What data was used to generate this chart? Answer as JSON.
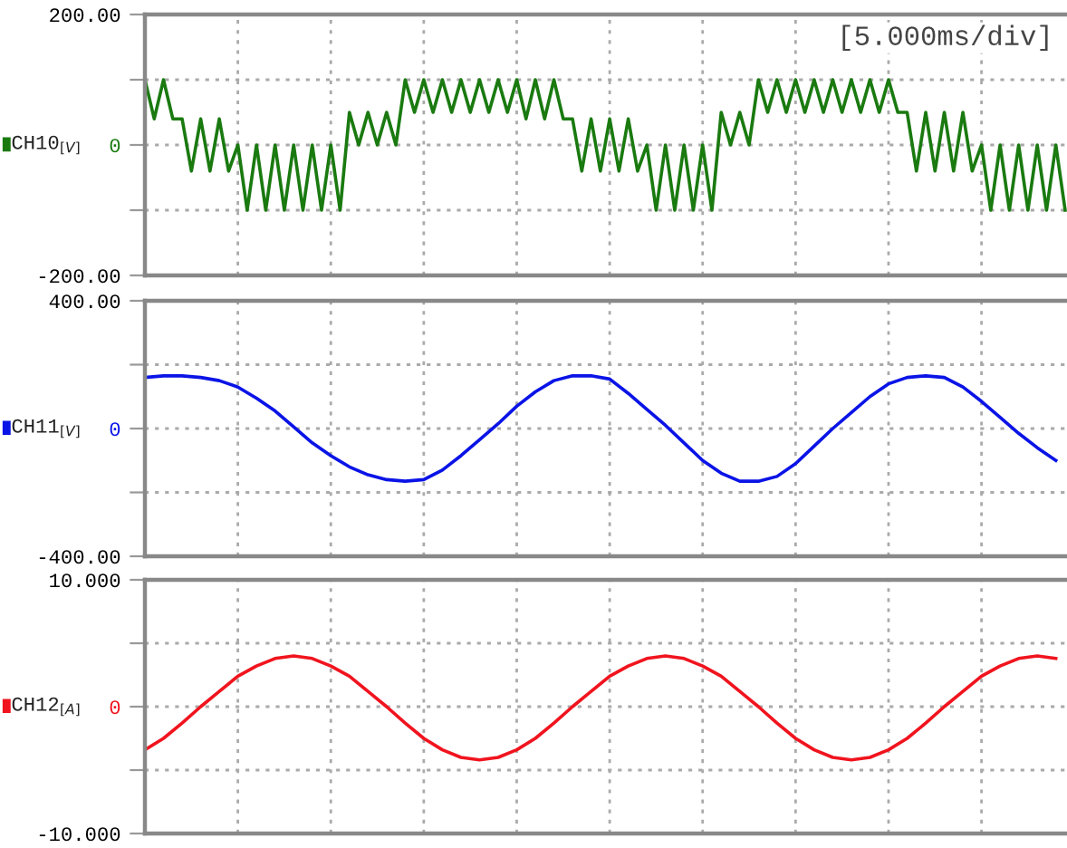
{
  "chart_data": [
    {
      "type": "line",
      "ylabel": "CH10$_{[V]}$",
      "annotations": [
        "[5.000ms/div]"
      ],
      "grid": true,
      "tick_labels": "y",
      "ylim": [
        -200,
        200
      ],
      "yticks": [
        {
          "value": 200,
          "label": "200.00"
        },
        {
          "value": 100,
          "label": null
        },
        {
          "value": 0,
          "label": "0"
        },
        {
          "value": -100,
          "label": null
        },
        {
          "value": -200,
          "label": "-200.00"
        }
      ],
      "categories": [
        null,
        null,
        null,
        null,
        null,
        null,
        null,
        null,
        null,
        null,
        null,
        null,
        null,
        null,
        null,
        null,
        null,
        null,
        null,
        null,
        null,
        null,
        null,
        null,
        null,
        null,
        null,
        null,
        null,
        null,
        null,
        null,
        null,
        null,
        null,
        null,
        null,
        null,
        null,
        null,
        null,
        null,
        null,
        null,
        null,
        null,
        null,
        null,
        null,
        null,
        null,
        null,
        null,
        null,
        null,
        null,
        null,
        null,
        null,
        null,
        null,
        null,
        null,
        null,
        null,
        null,
        null,
        null,
        null,
        null,
        null,
        null,
        null,
        null,
        null,
        null,
        null,
        null,
        null,
        null,
        null,
        null,
        null,
        null,
        null,
        null,
        null,
        null,
        null,
        null,
        null,
        null,
        null,
        null,
        null,
        null,
        null,
        null,
        null,
        null
      ],
      "series": [
        {
          "color": "#1a7a10",
          "values": [
            100,
            40,
            100,
            40,
            40,
            -40,
            40,
            -40,
            40,
            -40,
            0,
            -100,
            0,
            -100,
            0,
            -100,
            0,
            -100,
            0,
            -100,
            0,
            -100,
            50,
            0,
            50,
            0,
            50,
            0,
            100,
            50,
            100,
            50,
            100,
            50,
            100,
            50,
            100,
            50,
            100,
            50,
            100,
            40,
            100,
            40,
            100,
            40,
            40,
            -40,
            40,
            -40,
            40,
            -40,
            40,
            -40,
            0,
            -100,
            0,
            -100,
            0,
            -100,
            0,
            -100,
            50,
            0,
            50,
            0,
            100,
            50,
            100,
            50,
            100,
            50,
            100,
            50,
            100,
            50,
            100,
            50,
            100,
            50,
            100,
            50,
            50,
            -40,
            50,
            -40,
            50,
            -40,
            50,
            -40,
            0,
            -100,
            0,
            -100,
            0,
            -100,
            0,
            -100,
            0,
            -100
          ]
        }
      ]
    },
    {
      "type": "line",
      "ylabel": "CH11$_{[V]}$",
      "grid": true,
      "tick_labels": "y",
      "ylim": [
        -400,
        400
      ],
      "yticks": [
        {
          "value": 400,
          "label": "400.00"
        },
        {
          "value": 200,
          "label": null
        },
        {
          "value": 0,
          "label": "0"
        },
        {
          "value": -200,
          "label": null
        },
        {
          "value": -400,
          "label": "-400.00"
        }
      ],
      "categories": [
        null,
        null,
        null,
        null,
        null,
        null,
        null,
        null,
        null,
        null,
        null,
        null,
        null,
        null,
        null,
        null,
        null,
        null,
        null,
        null,
        null,
        null,
        null,
        null,
        null,
        null,
        null,
        null,
        null,
        null,
        null,
        null,
        null,
        null,
        null,
        null,
        null,
        null,
        null,
        null,
        null,
        null,
        null,
        null,
        null,
        null,
        null,
        null,
        null,
        null
      ],
      "series": [
        {
          "color": "#0a14e6",
          "values": [
            160,
            165,
            165,
            160,
            150,
            130,
            95,
            55,
            5,
            -45,
            -85,
            -120,
            -145,
            -160,
            -165,
            -160,
            -130,
            -85,
            -35,
            15,
            70,
            115,
            150,
            165,
            165,
            155,
            110,
            60,
            10,
            -45,
            -100,
            -140,
            -165,
            -165,
            -150,
            -110,
            -55,
            0,
            50,
            100,
            140,
            160,
            165,
            160,
            130,
            85,
            35,
            -15,
            -60,
            -100
          ]
        }
      ]
    },
    {
      "type": "line",
      "ylabel": "CH12$_{[A]}$",
      "grid": true,
      "tick_labels": "y",
      "ylim": [
        -10,
        10
      ],
      "yticks": [
        {
          "value": 10,
          "label": "10.000"
        },
        {
          "value": 5,
          "label": null
        },
        {
          "value": 0,
          "label": "0"
        },
        {
          "value": -5,
          "label": null
        },
        {
          "value": -10,
          "label": "-10.000"
        }
      ],
      "categories": [
        null,
        null,
        null,
        null,
        null,
        null,
        null,
        null,
        null,
        null,
        null,
        null,
        null,
        null,
        null,
        null,
        null,
        null,
        null,
        null,
        null,
        null,
        null,
        null,
        null,
        null,
        null,
        null,
        null,
        null,
        null,
        null,
        null,
        null,
        null,
        null,
        null,
        null,
        null,
        null,
        null,
        null,
        null,
        null,
        null,
        null,
        null,
        null,
        null,
        null
      ],
      "series": [
        {
          "color": "#f0141e",
          "values": [
            -3.4,
            -2.5,
            -1.3,
            0,
            1.2,
            2.4,
            3.2,
            3.8,
            4,
            3.8,
            3.2,
            2.4,
            1.2,
            0,
            -1.3,
            -2.5,
            -3.4,
            -4,
            -4.2,
            -4,
            -3.4,
            -2.5,
            -1.3,
            0,
            1.2,
            2.4,
            3.2,
            3.8,
            4,
            3.8,
            3.2,
            2.4,
            1.2,
            0,
            -1.3,
            -2.5,
            -3.4,
            -4,
            -4.2,
            -4,
            -3.4,
            -2.5,
            -1.3,
            0,
            1.2,
            2.4,
            3.2,
            3.8,
            4,
            3.8
          ]
        }
      ]
    }
  ]
}
